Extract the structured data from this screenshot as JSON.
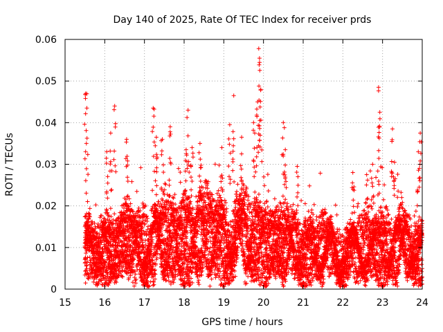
{
  "chart_data": {
    "type": "scatter",
    "title": "Day 140 of 2025, Rate Of TEC Index for receiver prds",
    "xlabel": "GPS time / hours",
    "ylabel": "ROTI / TECUs",
    "xlim": [
      15,
      24
    ],
    "ylim": [
      0,
      0.06
    ],
    "grid": true,
    "marker": "+",
    "color": "#ff0000",
    "x_ticks": [
      15,
      16,
      17,
      18,
      19,
      20,
      21,
      22,
      23,
      24
    ],
    "x_tick_labels": [
      "15",
      "16",
      "17",
      "18",
      "19",
      "20",
      "21",
      "22",
      "23",
      "24"
    ],
    "y_ticks": [
      0,
      0.01,
      0.02,
      0.03,
      0.04,
      0.05,
      0.06
    ],
    "y_tick_labels": [
      "0",
      "0.01",
      "0.02",
      "0.03",
      "0.04",
      "0.05",
      "0.06"
    ],
    "series": [
      {
        "name": "ROTI",
        "x_start": 15.5,
        "x_end": 24,
        "points_per_hour": 120,
        "streams": 8,
        "baseline_profile": [
          [
            15.5,
            0.0085
          ],
          [
            16.0,
            0.0095
          ],
          [
            16.5,
            0.0105
          ],
          [
            17.0,
            0.011
          ],
          [
            17.5,
            0.0115
          ],
          [
            18.0,
            0.0125
          ],
          [
            18.5,
            0.0125
          ],
          [
            19.0,
            0.012
          ],
          [
            19.5,
            0.012
          ],
          [
            20.0,
            0.0115
          ],
          [
            20.5,
            0.0105
          ],
          [
            21.0,
            0.0095
          ],
          [
            21.5,
            0.0092
          ],
          [
            22.0,
            0.0085
          ],
          [
            22.5,
            0.009
          ],
          [
            23.0,
            0.0105
          ],
          [
            23.5,
            0.0098
          ],
          [
            24.0,
            0.009
          ]
        ],
        "peaks": [
          [
            15.52,
            0.047
          ],
          [
            15.55,
            0.0435
          ],
          [
            16.05,
            0.033
          ],
          [
            16.15,
            0.0375
          ],
          [
            16.25,
            0.044
          ],
          [
            16.55,
            0.036
          ],
          [
            17.22,
            0.0435
          ],
          [
            17.3,
            0.0365
          ],
          [
            17.45,
            0.036
          ],
          [
            17.65,
            0.039
          ],
          [
            18.05,
            0.0335
          ],
          [
            18.1,
            0.043
          ],
          [
            18.2,
            0.034
          ],
          [
            18.4,
            0.035
          ],
          [
            18.95,
            0.034
          ],
          [
            19.15,
            0.0395
          ],
          [
            19.25,
            0.0465
          ],
          [
            19.45,
            0.0365
          ],
          [
            19.75,
            0.04
          ],
          [
            19.85,
            0.045
          ],
          [
            19.88,
            0.0578
          ],
          [
            19.9,
            0.0555
          ],
          [
            19.93,
            0.048
          ],
          [
            20.5,
            0.04
          ],
          [
            20.55,
            0.0335
          ],
          [
            20.85,
            0.0295
          ],
          [
            22.25,
            0.028
          ],
          [
            22.6,
            0.0275
          ],
          [
            22.75,
            0.03
          ],
          [
            22.9,
            0.0485
          ],
          [
            22.93,
            0.0425
          ],
          [
            23.25,
            0.0385
          ],
          [
            23.3,
            0.0305
          ],
          [
            23.9,
            0.033
          ],
          [
            23.95,
            0.0375
          ]
        ]
      }
    ]
  }
}
